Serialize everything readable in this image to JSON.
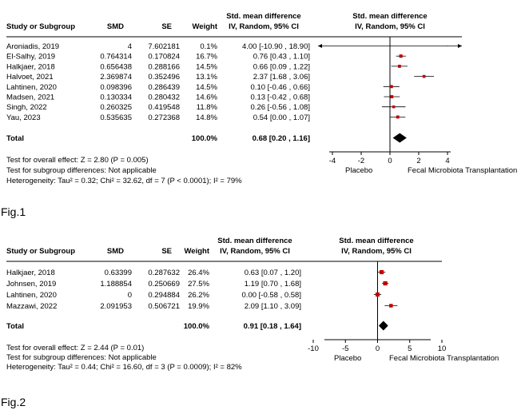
{
  "chart_data": [
    {
      "type": "forest",
      "columns": {
        "study": "Study or Subgroup",
        "smd": "SMD",
        "se": "SE",
        "weight": "Weight",
        "ci_line1": "Std. mean difference",
        "ci_line2": "IV, Random, 95% CI",
        "plot_line1": "Std. mean difference",
        "plot_line2": "IV, Random, 95% CI"
      },
      "rows": [
        {
          "study": "Aroniadis, 2019",
          "smd": "4",
          "se": "7.602181",
          "weight": "0.1%",
          "ci": "4.00 [-10.90 , 18.90]",
          "est": 4.0,
          "lo": -10.9,
          "hi": 18.9,
          "w": 0.1
        },
        {
          "study": "El-Salhy, 2019",
          "smd": "0.764314",
          "se": "0.170824",
          "weight": "16.7%",
          "ci": "0.76 [0.43 , 1.10]",
          "est": 0.76,
          "lo": 0.43,
          "hi": 1.1,
          "w": 16.7
        },
        {
          "study": "Halkjaer, 2018",
          "smd": "0.656438",
          "se": "0.288166",
          "weight": "14.5%",
          "ci": "0.66 [0.09 , 1.22]",
          "est": 0.66,
          "lo": 0.09,
          "hi": 1.22,
          "w": 14.5
        },
        {
          "study": "Halvoet, 2021",
          "smd": "2.369874",
          "se": "0.352496",
          "weight": "13.1%",
          "ci": "2.37 [1.68 , 3.06]",
          "est": 2.37,
          "lo": 1.68,
          "hi": 3.06,
          "w": 13.1
        },
        {
          "study": "Lahtinen, 2020",
          "smd": "0.098396",
          "se": "0.286439",
          "weight": "14.5%",
          "ci": "0.10 [-0.46 , 0.66]",
          "est": 0.1,
          "lo": -0.46,
          "hi": 0.66,
          "w": 14.5
        },
        {
          "study": "Madsen, 2021",
          "smd": "0.130334",
          "se": "0.280432",
          "weight": "14.6%",
          "ci": "0.13 [-0.42 , 0.68]",
          "est": 0.13,
          "lo": -0.42,
          "hi": 0.68,
          "w": 14.6
        },
        {
          "study": "Singh, 2022",
          "smd": "0.260325",
          "se": "0.419548",
          "weight": "11.8%",
          "ci": "0.26 [-0.56 , 1.08]",
          "est": 0.26,
          "lo": -0.56,
          "hi": 1.08,
          "w": 11.8
        },
        {
          "study": "Yau, 2023",
          "smd": "0.535635",
          "se": "0.272368",
          "weight": "14.8%",
          "ci": "0.54 [0.00 , 1.07]",
          "est": 0.54,
          "lo": 0.0,
          "hi": 1.07,
          "w": 14.8
        }
      ],
      "total": {
        "label": "Total",
        "weight": "100.0%",
        "ci": "0.68 [0.20 , 1.16]",
        "est": 0.68,
        "lo": 0.2,
        "hi": 1.16
      },
      "xlim": [
        -5,
        5
      ],
      "ticks": [
        -4,
        -2,
        0,
        2,
        4
      ],
      "tick_labels": [
        "-4",
        "-2",
        "0",
        "2",
        "4"
      ],
      "left_label": "Placebo",
      "right_label": "Fecal Microbiota Transplantation",
      "footnotes": [
        "Test for overall effect: Z = 2.80 (P = 0.005)",
        "Test for subgroup differences: Not applicable",
        "Heterogeneity: Tau² = 0.32; Chi² = 32.62, df = 7 (P < 0.0001); I² = 79%"
      ],
      "caption": "Fig.1"
    },
    {
      "type": "forest",
      "columns": {
        "study": "Study or Subgroup",
        "smd": "SMD",
        "se": "SE",
        "weight": "Weight",
        "ci_line1": "Std. mean difference",
        "ci_line2": "IV, Random, 95% CI",
        "plot_line1": "Std. mean difference",
        "plot_line2": "IV, Random, 95% CI"
      },
      "rows": [
        {
          "study": "Halkjaer, 2018",
          "smd": "0.63399",
          "se": "0.287632",
          "weight": "26.4%",
          "ci": "0.63 [0.07 , 1.20]",
          "est": 0.63,
          "lo": 0.07,
          "hi": 1.2,
          "w": 26.4
        },
        {
          "study": "Johnsen, 2019",
          "smd": "1.188854",
          "se": "0.250669",
          "weight": "27.5%",
          "ci": "1.19 [0.70 , 1.68]",
          "est": 1.19,
          "lo": 0.7,
          "hi": 1.68,
          "w": 27.5
        },
        {
          "study": "Lahtinen, 2020",
          "smd": "0",
          "se": "0.294884",
          "weight": "26.2%",
          "ci": "0.00 [-0.58 , 0.58]",
          "est": 0.0,
          "lo": -0.58,
          "hi": 0.58,
          "w": 26.2
        },
        {
          "study": "Mazzawi, 2022",
          "smd": "2.091953",
          "se": "0.506721",
          "weight": "19.9%",
          "ci": "2.09 [1.10 , 3.09]",
          "est": 2.09,
          "lo": 1.1,
          "hi": 3.09,
          "w": 19.9
        }
      ],
      "total": {
        "label": "Total",
        "weight": "100.0%",
        "ci": "0.91 [0.18 , 1.64]",
        "est": 0.91,
        "lo": 0.18,
        "hi": 1.64
      },
      "xlim": [
        -10,
        10
      ],
      "ticks": [
        -10,
        -5,
        0,
        5,
        10
      ],
      "tick_labels": [
        "-10",
        "-5",
        "0",
        "5",
        "10"
      ],
      "left_label": "Placebo",
      "right_label": "Fecal Microbiota Transplantation",
      "footnotes": [
        "Test for overall effect: Z = 2.44 (P = 0.01)",
        "Test for subgroup differences: Not applicable",
        "Heterogeneity: Tau² = 0.44; Chi² = 16.60, df = 3 (P = 0.0009); I² = 82%"
      ],
      "caption": "Fig.2"
    }
  ],
  "colors": {
    "marker": "#c00000",
    "diamond": "#000000",
    "line": "#000000"
  }
}
